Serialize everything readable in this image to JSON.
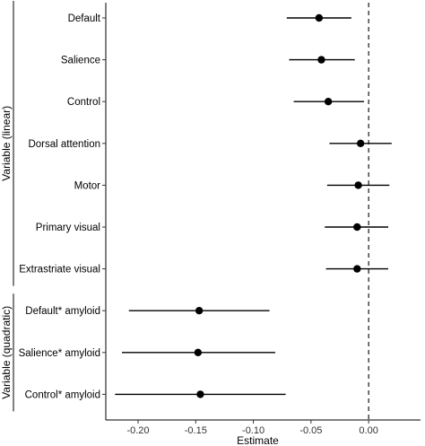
{
  "chart_data": {
    "type": "scatter",
    "style": "forest-plot",
    "xlabel": "Estimate",
    "xlim": [
      -0.228,
      0.045
    ],
    "xticks": [
      -0.2,
      -0.15,
      -0.1,
      -0.05,
      0.0
    ],
    "xtick_labels": [
      "-0.20",
      "-0.15",
      "-0.10",
      "-0.05",
      "0.00"
    ],
    "reference_line": {
      "x": 0.0,
      "style": "dashed"
    },
    "grid": false,
    "groups": [
      {
        "name": "Variable (linear)",
        "items": [
          {
            "label": "Default",
            "estimate": -0.043,
            "low": -0.071,
            "high": -0.015
          },
          {
            "label": "Salience",
            "estimate": -0.041,
            "low": -0.069,
            "high": -0.012
          },
          {
            "label": "Control",
            "estimate": -0.035,
            "low": -0.065,
            "high": -0.004
          },
          {
            "label": "Dorsal attention",
            "estimate": -0.007,
            "low": -0.034,
            "high": 0.02
          },
          {
            "label": "Motor",
            "estimate": -0.009,
            "low": -0.036,
            "high": 0.018
          },
          {
            "label": "Primary visual",
            "estimate": -0.01,
            "low": -0.038,
            "high": 0.017
          },
          {
            "label": "Extrastriate visual",
            "estimate": -0.01,
            "low": -0.037,
            "high": 0.017
          }
        ]
      },
      {
        "name": "Variable (quadratic)",
        "items": [
          {
            "label": "Default* amyloid",
            "estimate": -0.147,
            "low": -0.208,
            "high": -0.086
          },
          {
            "label": "Salience* amyloid",
            "estimate": -0.148,
            "low": -0.214,
            "high": -0.081
          },
          {
            "label": "Control* amyloid",
            "estimate": -0.146,
            "low": -0.22,
            "high": -0.072
          }
        ]
      }
    ]
  }
}
